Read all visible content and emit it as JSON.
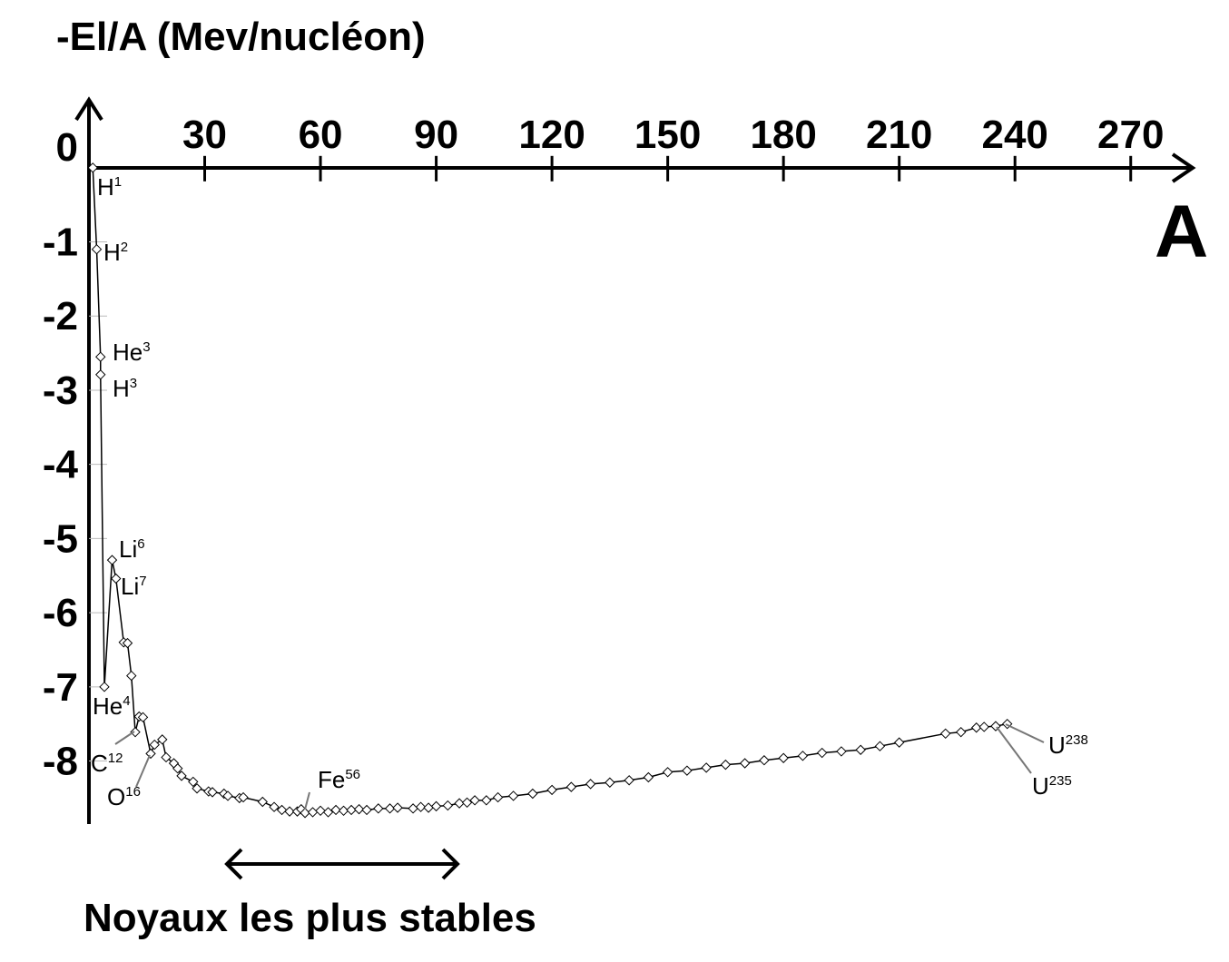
{
  "chart_data": {
    "type": "line",
    "title": "-El/A (Mev/nucléon)",
    "x_label": "A",
    "footer": "Noyaux les plus stables",
    "color": "#000000",
    "marker": "diamond",
    "x": [
      1,
      2,
      3,
      3,
      4,
      6,
      7,
      9,
      10,
      11,
      12,
      13,
      14,
      16,
      17,
      19,
      20,
      22,
      23,
      24,
      27,
      28,
      31,
      32,
      35,
      36,
      39,
      40,
      45,
      48,
      50,
      52,
      54,
      55,
      56,
      58,
      60,
      62,
      64,
      66,
      68,
      70,
      72,
      75,
      78,
      80,
      84,
      86,
      88,
      90,
      93,
      96,
      98,
      100,
      103,
      106,
      110,
      115,
      120,
      125,
      130,
      135,
      140,
      145,
      150,
      155,
      160,
      165,
      170,
      175,
      180,
      185,
      190,
      195,
      200,
      205,
      210,
      222,
      226,
      230,
      232,
      235,
      238
    ],
    "values": [
      0,
      -1.1,
      -2.55,
      -2.79,
      -7.0,
      -5.29,
      -5.54,
      -6.4,
      -6.41,
      -6.85,
      -7.61,
      -7.4,
      -7.41,
      -7.9,
      -7.78,
      -7.71,
      -7.95,
      -8.03,
      -8.1,
      -8.2,
      -8.28,
      -8.37,
      -8.41,
      -8.42,
      -8.44,
      -8.47,
      -8.5,
      -8.49,
      -8.55,
      -8.62,
      -8.66,
      -8.68,
      -8.68,
      -8.65,
      -8.7,
      -8.69,
      -8.67,
      -8.69,
      -8.66,
      -8.67,
      -8.66,
      -8.65,
      -8.66,
      -8.64,
      -8.64,
      -8.63,
      -8.64,
      -8.62,
      -8.63,
      -8.61,
      -8.6,
      -8.57,
      -8.56,
      -8.53,
      -8.53,
      -8.49,
      -8.47,
      -8.44,
      -8.39,
      -8.35,
      -8.31,
      -8.29,
      -8.26,
      -8.22,
      -8.15,
      -8.13,
      -8.09,
      -8.05,
      -8.03,
      -7.99,
      -7.96,
      -7.93,
      -7.89,
      -7.87,
      -7.85,
      -7.8,
      -7.75,
      -7.63,
      -7.61,
      -7.55,
      -7.54,
      -7.53,
      -7.5
    ],
    "xlim": [
      0,
      287
    ],
    "ylim": [
      -8.85,
      0.94
    ],
    "xticks": [
      30,
      60,
      90,
      120,
      150,
      180,
      210,
      240,
      270
    ],
    "yticks": [
      0,
      -1,
      -2,
      -3,
      -4,
      -5,
      -6,
      -7,
      -8
    ],
    "annotations": [
      {
        "text": "H",
        "sup": "1"
      },
      {
        "text": "H",
        "sup": "2"
      },
      {
        "text": "He",
        "sup": "3"
      },
      {
        "text": "H",
        "sup": "3"
      },
      {
        "text": "He",
        "sup": "4"
      },
      {
        "text": "Li",
        "sup": "6"
      },
      {
        "text": "Li",
        "sup": "7"
      },
      {
        "text": "C",
        "sup": "12"
      },
      {
        "text": "O",
        "sup": "16"
      },
      {
        "text": "Fe",
        "sup": "56"
      },
      {
        "text": "U",
        "sup": "238"
      },
      {
        "text": "U",
        "sup": "235"
      }
    ]
  }
}
